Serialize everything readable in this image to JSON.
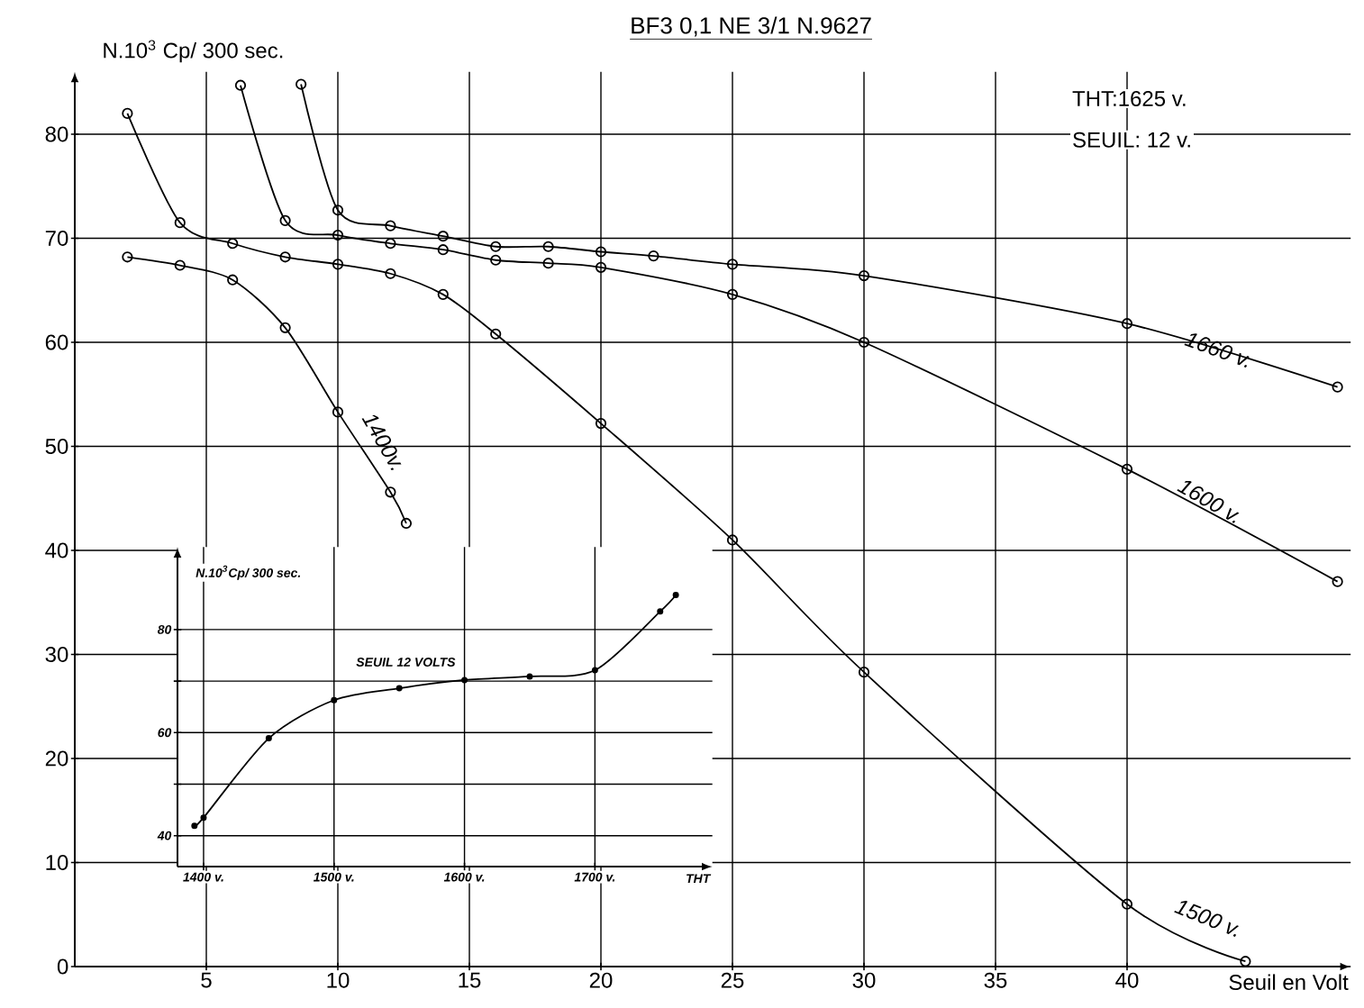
{
  "chart_data": [
    {
      "type": "line",
      "title": "BF3 0,1 NE 3/1 N.9627",
      "ylabel": "N.10$^{3}$ Cp/ 300 sec.",
      "xlabel": "Seuil en Volt",
      "annotations": [
        "THT:1625 v.",
        "SEUIL: 12 v."
      ],
      "xlim": [
        0,
        48.5
      ],
      "ylim": [
        0,
        86
      ],
      "xticks": [
        5,
        10,
        15,
        20,
        25,
        30,
        35,
        40
      ],
      "yticks": [
        0,
        10,
        20,
        30,
        40,
        50,
        60,
        70,
        80
      ],
      "grid": true,
      "marker": "circle",
      "line_style": "solid",
      "series": [
        {
          "name": "1400v.",
          "color": "#000000",
          "x": [
            2,
            4,
            6,
            8,
            10,
            12,
            12.6
          ],
          "values": [
            68.2,
            67.4,
            66.0,
            61.4,
            53.3,
            45.6,
            42.6
          ]
        },
        {
          "name": "1500 v.",
          "color": "#000000",
          "x": [
            2,
            4,
            6,
            8,
            10,
            12,
            14,
            16,
            20,
            25,
            30,
            40,
            44.5
          ],
          "values": [
            82,
            71.5,
            69.5,
            68.2,
            67.5,
            66.6,
            64.6,
            60.8,
            52.2,
            41,
            28.3,
            6,
            0.5
          ]
        },
        {
          "name": "1600 v.",
          "color": "#000000",
          "x": [
            6.3,
            8,
            10,
            12,
            14,
            16,
            18,
            20,
            25,
            30,
            40,
            48
          ],
          "values": [
            84.7,
            71.7,
            70.3,
            69.5,
            68.9,
            67.9,
            67.6,
            67.2,
            64.6,
            60,
            47.8,
            37
          ]
        },
        {
          "name": "1660 v.",
          "color": "#000000",
          "x": [
            8.6,
            10,
            12,
            14,
            16,
            18,
            20,
            22,
            25,
            30,
            40,
            48
          ],
          "values": [
            84.8,
            72.7,
            71.2,
            70.2,
            69.2,
            69.2,
            68.7,
            68.3,
            67.5,
            66.4,
            61.8,
            55.7
          ]
        }
      ]
    },
    {
      "type": "line",
      "ylabel": "N.10$^{3}$Cp/ 300 sec.",
      "xlabel": "THT",
      "annotations": [
        "SEUIL 12 VOLTS"
      ],
      "xlim": [
        1380,
        1790
      ],
      "ylim": [
        34,
        96
      ],
      "xticks": [
        {
          "value": 1400,
          "label": "1400 v."
        },
        {
          "value": 1500,
          "label": "1500 v."
        },
        {
          "value": 1600,
          "label": "1600 v."
        },
        {
          "value": 1700,
          "label": "1700 v."
        }
      ],
      "yticks": [
        40,
        {
          "value": 50,
          "label": null
        },
        60,
        {
          "value": 70,
          "label": null
        },
        80
      ],
      "grid": true,
      "marker": "circle",
      "line_style": "solid",
      "series": [
        {
          "color": "#000000",
          "x": [
            1393,
            1400,
            1450,
            1500,
            1550,
            1600,
            1650,
            1700,
            1750,
            1762
          ],
          "values": [
            41.9,
            43.5,
            58.9,
            66.3,
            68.6,
            70.2,
            70.9,
            72.1,
            83.5,
            86.7
          ]
        }
      ]
    }
  ]
}
